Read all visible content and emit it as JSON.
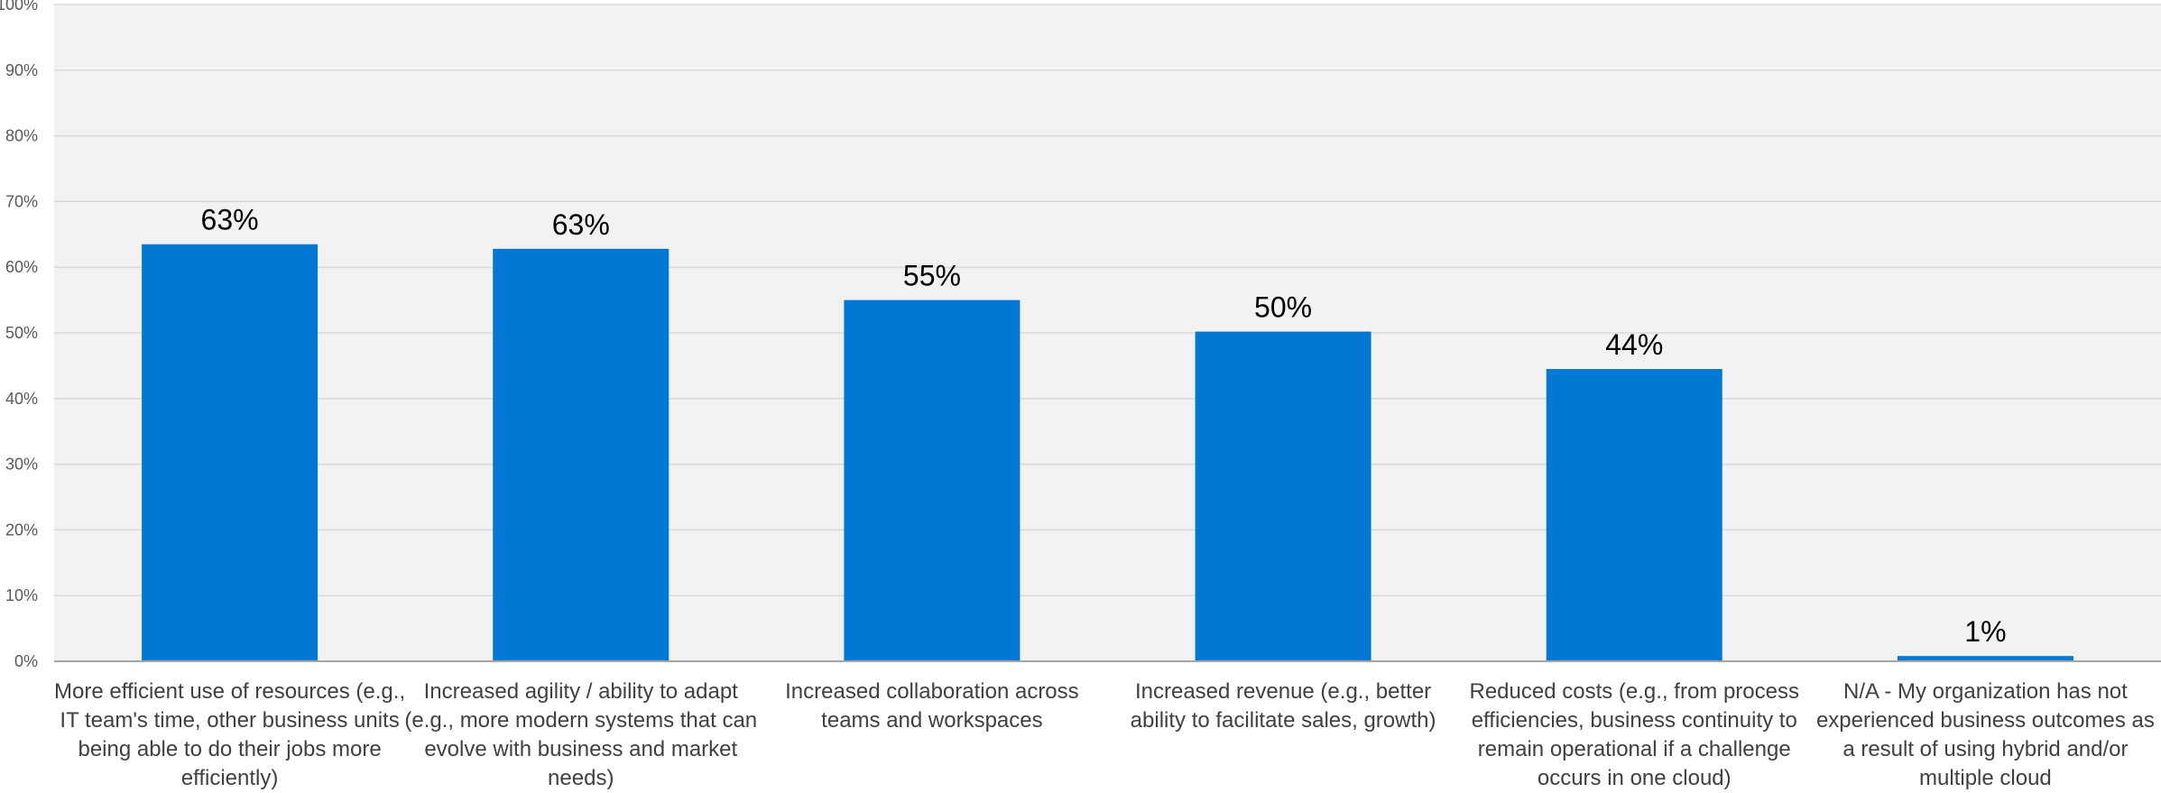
{
  "chart_data": {
    "type": "bar",
    "categories": [
      "More efficient use of resources (e.g., IT team's time, other business units being able to do their jobs more efficiently)",
      "Increased agility / ability to adapt (e.g., more modern systems that can evolve with business and market needs)",
      "Increased collaboration across teams and workspaces",
      "Increased revenue (e.g., better ability to facilitate sales, growth)",
      "Reduced costs (e.g., from process efficiencies, business continuity to remain operational if a challenge occurs in one cloud)",
      "N/A - My organization has not experienced business outcomes as a result of using hybrid and/or multiple cloud"
    ],
    "values": [
      63.5,
      62.8,
      55,
      50.2,
      44.5,
      0.8
    ],
    "data_labels": [
      "63%",
      "63%",
      "55%",
      "50%",
      "44%",
      "1%"
    ],
    "ylim": [
      0,
      100
    ],
    "yticks": [
      "0%",
      "10%",
      "20%",
      "30%",
      "40%",
      "50%",
      "60%",
      "70%",
      "80%",
      "90%",
      "100%"
    ],
    "grid": true,
    "legend": "none"
  },
  "colors": {
    "bar": "#0078D4",
    "plot_background": "#F2F2F2",
    "gridline": "#D9D9D9",
    "axis": "#A6A6A6"
  }
}
